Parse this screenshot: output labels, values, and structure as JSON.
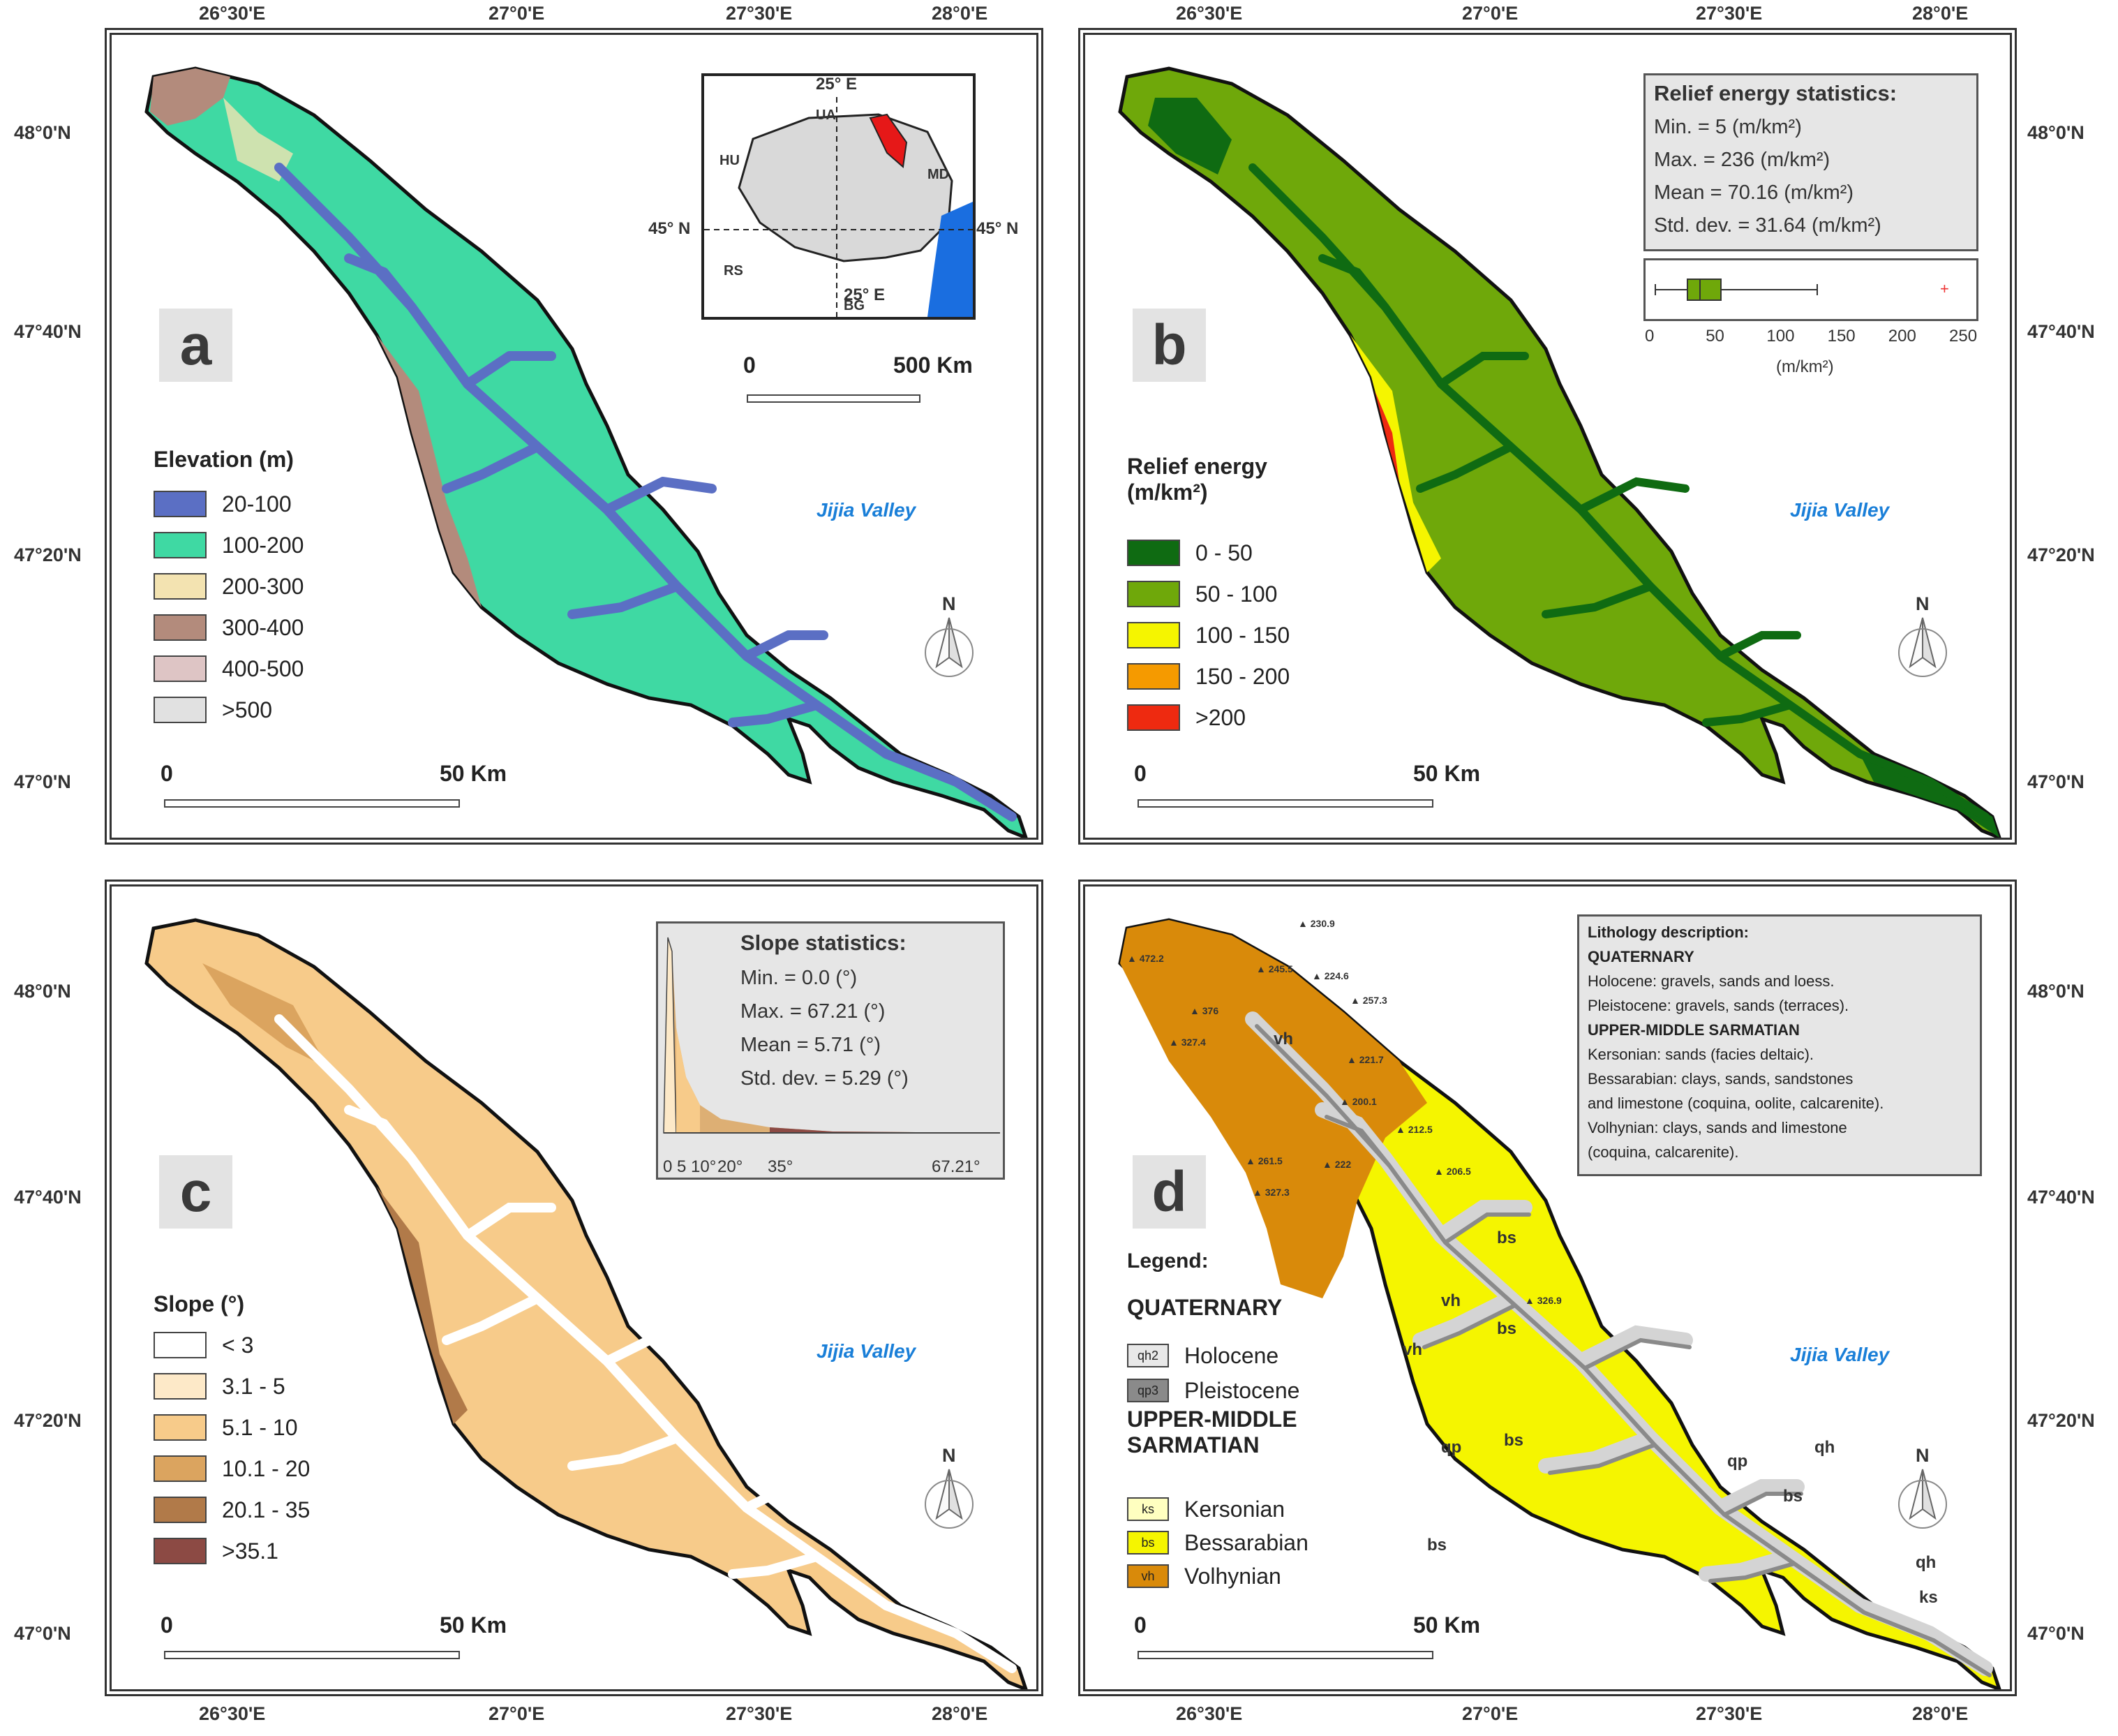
{
  "coords": {
    "top_lon": [
      "26°30'E",
      "27°0'E",
      "27°30'E",
      "28°0'E"
    ],
    "bottom_lon": [
      "26°30'E",
      "27°0'E",
      "27°30'E",
      "28°0'E"
    ],
    "left_lat": [
      "48°0'N",
      "47°40'N",
      "47°20'N",
      "47°0'N"
    ],
    "right_lat": [
      "48°0'N",
      "47°40'N",
      "47°20'N",
      "47°0'N"
    ]
  },
  "panel_a": {
    "letter": "a",
    "legend_title": "Elevation (m)",
    "legend": [
      {
        "label": "20-100",
        "color": "#5b6fc4"
      },
      {
        "label": "100-200",
        "color": "#3fd9a3"
      },
      {
        "label": "200-300",
        "color": "#f3e3b1"
      },
      {
        "label": "300-400",
        "color": "#b38b7c"
      },
      {
        "label": "400-500",
        "color": "#dec5c5"
      },
      {
        "label": ">500",
        "color": "#e1e1e1"
      }
    ],
    "scale_start": "0",
    "scale_end": "50 Km",
    "jijia": "Jijia Valley",
    "inset": {
      "lon_label_top": "25° E",
      "lon_label_bottom": "25° E",
      "lat_label_left": "45° N",
      "lat_label_right": "45° N",
      "countries": [
        "UA",
        "HU",
        "MD",
        "RS",
        "BG"
      ],
      "scale_start": "0",
      "scale_end": "500 Km"
    }
  },
  "panel_b": {
    "letter": "b",
    "legend_title": "Relief energy\n(m/km²)",
    "legend": [
      {
        "label": "0 - 50",
        "color": "#0f6b12"
      },
      {
        "label": "50 - 100",
        "color": "#6fa80a"
      },
      {
        "label": "100 - 150",
        "color": "#f5f500"
      },
      {
        "label": "150 - 200",
        "color": "#f59a00"
      },
      {
        "label": ">200",
        "color": "#ee2a10"
      }
    ],
    "scale_start": "0",
    "scale_end": "50 Km",
    "jijia": "Jijia Valley",
    "stats_title": "Relief energy statistics:",
    "stats": [
      "Min. = 5 (m/km²)",
      "Max. = 236 (m/km²)",
      "Mean = 70.16 (m/km²)",
      "Std. dev. = 31.64 (m/km²)"
    ],
    "boxplot_ticks": [
      "0",
      "50",
      "100",
      "150",
      "200",
      "250"
    ],
    "boxplot_unit": "(m/km²)"
  },
  "panel_c": {
    "letter": "c",
    "legend_title": "Slope (°)",
    "legend": [
      {
        "label": "< 3",
        "color": "#ffffff"
      },
      {
        "label": "3.1 - 5",
        "color": "#fde9c8"
      },
      {
        "label": "5.1 - 10",
        "color": "#f7cb8a"
      },
      {
        "label": "10.1 - 20",
        "color": "#dba45f"
      },
      {
        "label": "20.1 - 35",
        "color": "#b17a49"
      },
      {
        "label": ">35.1",
        "color": "#8c4a44"
      }
    ],
    "scale_start": "0",
    "scale_end": "50 Km",
    "jijia": "Jijia Valley",
    "stats_title": "Slope statistics:",
    "stats": [
      "Min. = 0.0 (°)",
      "Max. = 67.21 (°)",
      "Mean = 5.71 (°)",
      "Std. dev. = 5.29 (°)"
    ],
    "hist_ticks": [
      "0",
      "5",
      "10°",
      "20°",
      "35°",
      "67.21°"
    ]
  },
  "panel_d": {
    "letter": "d",
    "legend_title": "Legend:",
    "quaternary": "QUATERNARY",
    "upper": "UPPER-MIDDLE\nSARMATIAN",
    "legend": [
      {
        "code": "qh2",
        "label": "Holocene",
        "color": "#e8e8e8"
      },
      {
        "code": "qp3",
        "label": "Pleistocene",
        "color": "#8a8a8a"
      },
      {
        "code": "ks",
        "label": "Kersonian",
        "color": "#ffffc0"
      },
      {
        "code": "bs",
        "label": "Bessarabian",
        "color": "#f5f500"
      },
      {
        "code": "vh",
        "label": "Volhynian",
        "color": "#d98a0a"
      }
    ],
    "scale_start": "0",
    "scale_end": "50 Km",
    "jijia": "Jijia Valley",
    "litho": [
      {
        "text": "Lithology description:",
        "bold": true
      },
      {
        "text": "QUATERNARY",
        "bold": true
      },
      {
        "text": "Holocene: gravels, sands and loess.",
        "bold": false
      },
      {
        "text": "Pleistocene: gravels, sands (terraces).",
        "bold": false
      },
      {
        "text": "UPPER-MIDDLE SARMATIAN",
        "bold": true
      },
      {
        "text": "Kersonian: sands (facies deltaic).",
        "bold": false
      },
      {
        "text": "Bessarabian: clays, sands, sandstones",
        "bold": false
      },
      {
        "text": "and limestone (coquina, oolite, calcarenite).",
        "bold": false
      },
      {
        "text": "Volhynian: clays, sands and limestone",
        "bold": false
      },
      {
        "text": "(coquina, calcarenite).",
        "bold": false
      }
    ],
    "map_labels": [
      "vh",
      "vh",
      "vh",
      "bs",
      "bs",
      "bs",
      "bs",
      "bs",
      "qp",
      "qp",
      "qh",
      "qh",
      "ks"
    ],
    "elevations": [
      "230.9",
      "472.2",
      "245.5",
      "224.6",
      "257.3",
      "376",
      "327.4",
      "221.7",
      "200.1",
      "212.5",
      "261.5",
      "222",
      "327.3",
      "206.5",
      "326.9"
    ]
  },
  "north": "N",
  "colors": {
    "frame": "#333333",
    "letter_bg": "#e3e3e3",
    "stat_bg": "#e6e6e6",
    "jijia": "#1a7fd8"
  }
}
